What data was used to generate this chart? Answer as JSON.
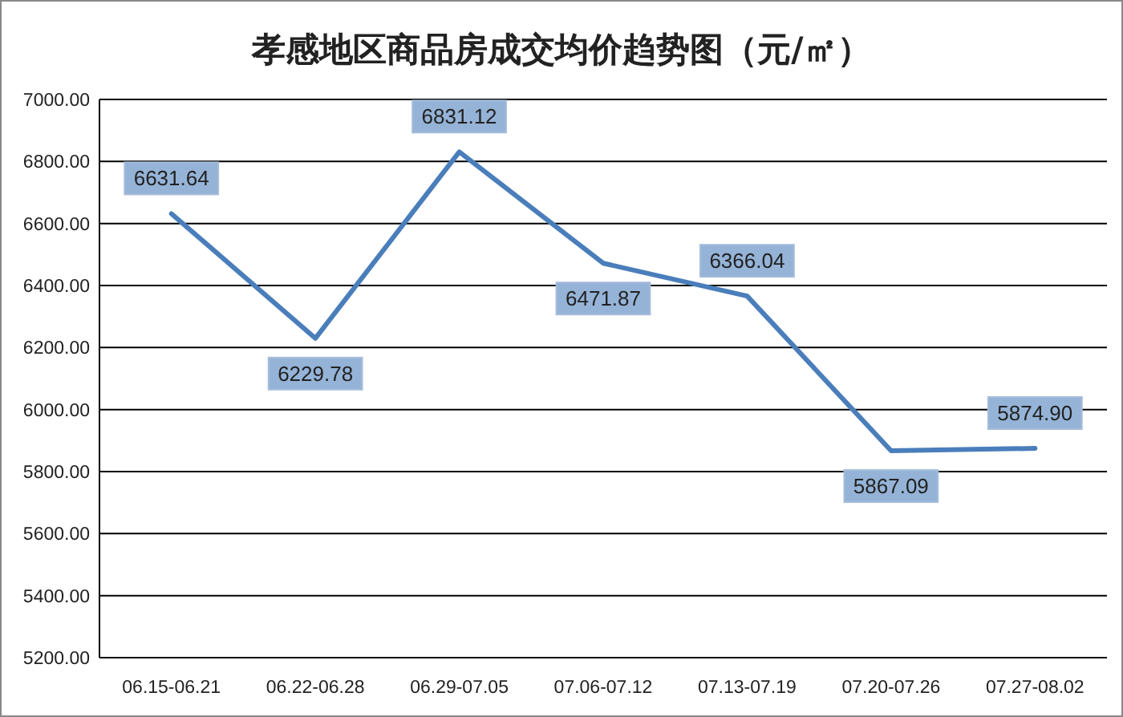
{
  "chart_data": {
    "type": "line",
    "title": "孝感地区商品房成交均价趋势图（元/㎡）",
    "categories": [
      "06.15-06.21",
      "06.22-06.28",
      "06.29-07.05",
      "07.06-07.12",
      "07.13-07.19",
      "07.20-07.26",
      "07.27-08.02"
    ],
    "series": [
      {
        "color": "#4a7ebb",
        "values": [
          6631.64,
          6229.78,
          6831.12,
          6471.87,
          6366.04,
          5867.09,
          5874.9
        ],
        "value_labels": [
          "6631.64",
          "6229.78",
          "6831.12",
          "6471.87",
          "6366.04",
          "5867.09",
          "5874.90"
        ]
      }
    ],
    "ylim": [
      5200,
      7000
    ],
    "yticks": [
      {
        "value": 5200,
        "label": "5200.00"
      },
      {
        "value": 5400,
        "label": "5400.00"
      },
      {
        "value": 5600,
        "label": "5600.00"
      },
      {
        "value": 5800,
        "label": "5800.00"
      },
      {
        "value": 6000,
        "label": "6000.00"
      },
      {
        "value": 6200,
        "label": "6200.00"
      },
      {
        "value": 6400,
        "label": "6400.00"
      },
      {
        "value": 6600,
        "label": "6600.00"
      },
      {
        "value": 6800,
        "label": "6800.00"
      },
      {
        "value": 7000,
        "label": "7000.00"
      }
    ],
    "grid": "y",
    "marker": "none",
    "line_style": "solid"
  }
}
